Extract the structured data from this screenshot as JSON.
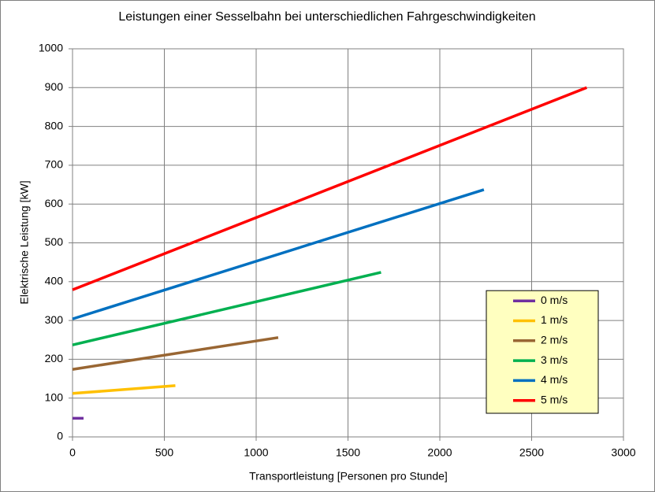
{
  "chart_data": {
    "type": "line",
    "title": "Leistungen einer Sesselbahn bei unterschiedlichen Fahrgeschwindigkeiten",
    "x_label": "Transportleistung  [Personen pro Stunde]",
    "y_label": "Elektrische Leistung [kW]",
    "xlim": [
      0,
      3000
    ],
    "xticks": [
      0,
      500,
      1000,
      1500,
      2000,
      2500,
      3000
    ],
    "ylim": [
      0,
      1000
    ],
    "yticks": [
      0,
      100,
      200,
      300,
      400,
      500,
      600,
      700,
      800,
      900,
      1000
    ],
    "grid": true,
    "legend": "lower right",
    "series": [
      {
        "name": "0 m/s",
        "color": "#7030a0",
        "x": [
          0,
          60
        ],
        "values": [
          48,
          48
        ]
      },
      {
        "name": "1 m/s",
        "color": "#ffc000",
        "x": [
          0,
          560
        ],
        "values": [
          112,
          132
        ]
      },
      {
        "name": "2 m/s",
        "color": "#996633",
        "x": [
          0,
          1120
        ],
        "values": [
          174,
          256
        ]
      },
      {
        "name": "3 m/s",
        "color": "#00b050",
        "x": [
          0,
          1680
        ],
        "values": [
          237,
          424
        ]
      },
      {
        "name": "4 m/s",
        "color": "#0070c0",
        "x": [
          0,
          2240
        ],
        "values": [
          304,
          637
        ]
      },
      {
        "name": "5 m/s",
        "color": "#ff0000",
        "x": [
          0,
          2800
        ],
        "values": [
          379,
          900
        ]
      }
    ]
  }
}
